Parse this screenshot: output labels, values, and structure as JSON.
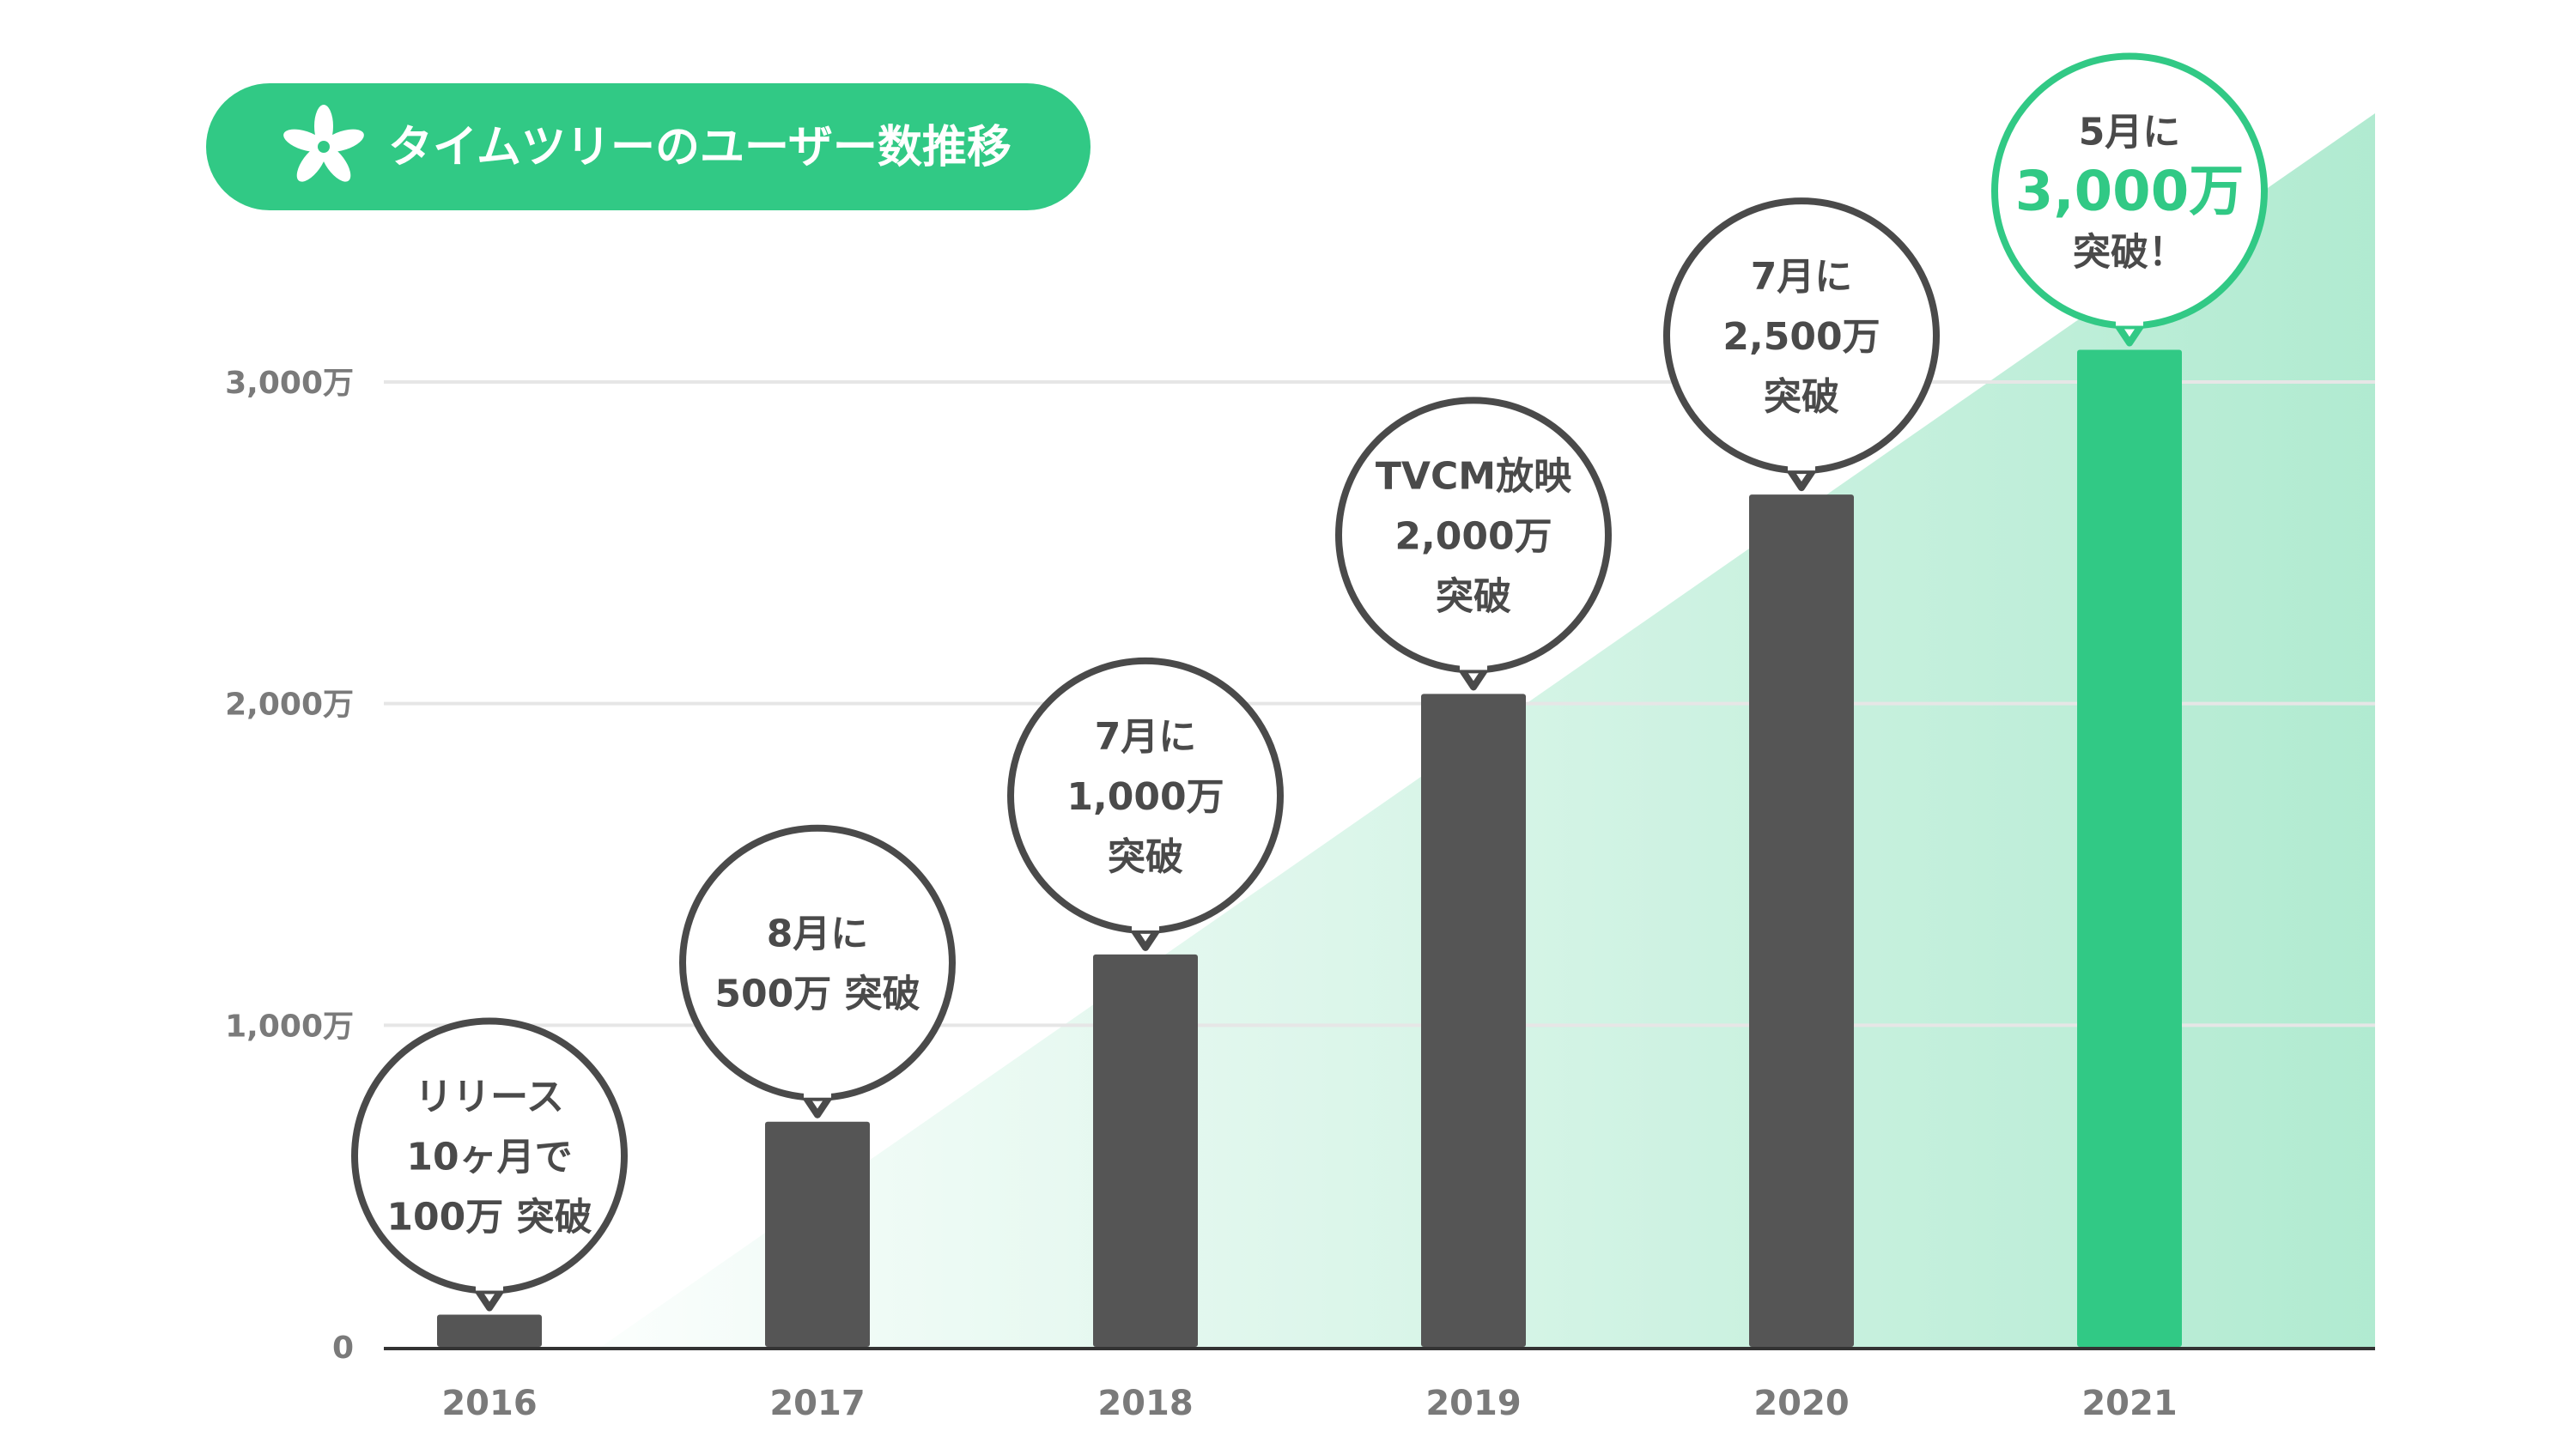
{
  "title": {
    "text": "タイムツリーのユーザー数推移",
    "icon": "flower-icon"
  },
  "colors": {
    "accent": "#31c985",
    "bar": "#555555",
    "highlight_bar": "#31c985",
    "bubble_border": "#4a4a4a",
    "axis_text": "#7a7a7a",
    "grid": "#e6e6e6"
  },
  "chart_data": {
    "type": "bar",
    "title": "タイムツリーのユーザー数推移",
    "categories": [
      "2016",
      "2017",
      "2018",
      "2019",
      "2020",
      "2021"
    ],
    "values": [
      100,
      700,
      1220,
      2030,
      2650,
      3100
    ],
    "ylim": [
      0,
      3000
    ],
    "yticks": [
      {
        "value": 0,
        "label": "0"
      },
      {
        "value": 1000,
        "label": "1,000万"
      },
      {
        "value": 2000,
        "label": "2,000万"
      },
      {
        "value": 3000,
        "label": "3,000万"
      }
    ],
    "grid": true,
    "annotations": [
      {
        "category": "2016",
        "lines": [
          "リリース",
          "10ヶ月で",
          "100万 突破"
        ],
        "highlight": false
      },
      {
        "category": "2017",
        "lines": [
          "8月に",
          "500万 突破"
        ],
        "highlight": false
      },
      {
        "category": "2018",
        "lines": [
          "7月に",
          "1,000万",
          "突破"
        ],
        "highlight": false
      },
      {
        "category": "2019",
        "lines": [
          "TVCM放映",
          "2,000万",
          "突破"
        ],
        "highlight": false
      },
      {
        "category": "2020",
        "lines": [
          "7月に",
          "2,500万",
          "突破"
        ],
        "highlight": false
      },
      {
        "category": "2021",
        "lines": [
          "5月に",
          "3,000万",
          "突破！"
        ],
        "highlight": true,
        "big_line": 1
      }
    ]
  }
}
